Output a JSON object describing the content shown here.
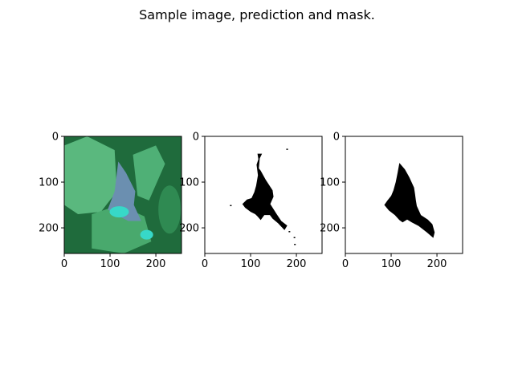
{
  "figure": {
    "title": "Sample image, prediction and mask."
  },
  "chart_data": [
    {
      "type": "image",
      "panel": "sample-image",
      "image_size": [
        256,
        256
      ],
      "xlim": [
        0,
        256
      ],
      "ylim": [
        256,
        0
      ],
      "x_ticks": [
        0,
        100,
        200
      ],
      "y_ticks": [
        0,
        100,
        200
      ],
      "x_tick_labels": [
        "0",
        "100",
        "200"
      ],
      "y_tick_labels": [
        "0",
        "100",
        "200"
      ],
      "colors": {
        "leaf_green": "#3fae6c",
        "dark_green": "#1f6b3c",
        "lesion_blue": "#6b8fb0",
        "cyan_spot": "#37d8c8"
      }
    },
    {
      "type": "image",
      "panel": "prediction",
      "image_size": [
        256,
        256
      ],
      "xlim": [
        0,
        256
      ],
      "ylim": [
        256,
        0
      ],
      "x_ticks": [
        0,
        100,
        200
      ],
      "y_ticks": [
        0,
        100,
        200
      ],
      "x_tick_labels": [
        "0",
        "100",
        "200"
      ],
      "y_tick_labels": [
        "0",
        "100",
        "200"
      ],
      "shape_points": [
        [
          115,
          38
        ],
        [
          125,
          38
        ],
        [
          120,
          48
        ],
        [
          118,
          70
        ],
        [
          122,
          75
        ],
        [
          133,
          95
        ],
        [
          148,
          118
        ],
        [
          150,
          132
        ],
        [
          143,
          148
        ],
        [
          157,
          170
        ],
        [
          167,
          185
        ],
        [
          180,
          195
        ],
        [
          174,
          205
        ],
        [
          160,
          190
        ],
        [
          148,
          180
        ],
        [
          142,
          172
        ],
        [
          130,
          172
        ],
        [
          122,
          183
        ],
        [
          115,
          175
        ],
        [
          110,
          170
        ],
        [
          100,
          165
        ],
        [
          88,
          156
        ],
        [
          82,
          148
        ],
        [
          92,
          138
        ],
        [
          102,
          135
        ],
        [
          108,
          122
        ],
        [
          112,
          108
        ],
        [
          116,
          85
        ],
        [
          113,
          62
        ],
        [
          117,
          50
        ]
      ],
      "extra_specks": [
        [
          183,
          207
        ],
        [
          194,
          220
        ],
        [
          195,
          235
        ],
        [
          178,
          27
        ],
        [
          55,
          150
        ]
      ]
    },
    {
      "type": "image",
      "panel": "mask",
      "image_size": [
        256,
        256
      ],
      "xlim": [
        0,
        256
      ],
      "ylim": [
        256,
        0
      ],
      "x_ticks": [
        0,
        100,
        200
      ],
      "y_ticks": [
        0,
        100,
        200
      ],
      "x_tick_labels": [
        "0",
        "100",
        "200"
      ],
      "y_tick_labels": [
        "0",
        "100",
        "200"
      ],
      "shape_points": [
        [
          118,
          58
        ],
        [
          130,
          72
        ],
        [
          140,
          90
        ],
        [
          150,
          112
        ],
        [
          152,
          125
        ],
        [
          154,
          140
        ],
        [
          156,
          152
        ],
        [
          165,
          172
        ],
        [
          180,
          182
        ],
        [
          190,
          192
        ],
        [
          195,
          210
        ],
        [
          192,
          222
        ],
        [
          178,
          210
        ],
        [
          160,
          196
        ],
        [
          145,
          188
        ],
        [
          135,
          182
        ],
        [
          125,
          188
        ],
        [
          118,
          183
        ],
        [
          108,
          172
        ],
        [
          95,
          162
        ],
        [
          85,
          150
        ],
        [
          92,
          140
        ],
        [
          100,
          130
        ],
        [
          105,
          118
        ],
        [
          110,
          100
        ],
        [
          114,
          80
        ]
      ]
    }
  ]
}
